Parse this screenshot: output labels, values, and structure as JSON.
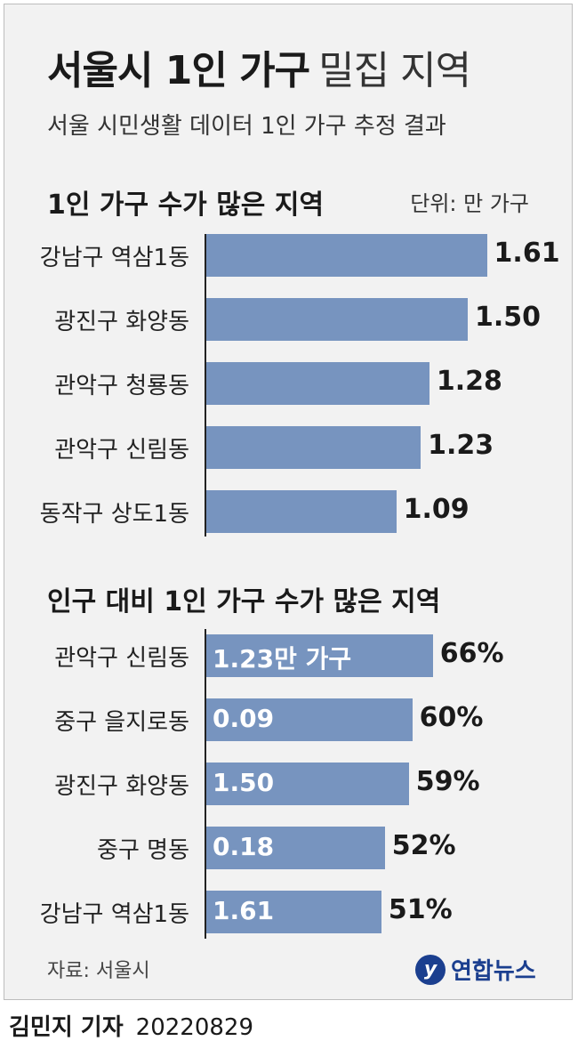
{
  "title": "서울시 1인 가구",
  "title_suffix": "밀집 지역",
  "subtitle": "서울 시민생활 데이터 1인 가구 추정 결과",
  "unit": "단위: 만 가구",
  "source": "자료: 서울시",
  "logo_text": "연합뉴스",
  "byline_name": "김민지 기자",
  "byline_date": "20220829",
  "colors": {
    "bar": "#7794bf",
    "background": "#f2f2f2",
    "logo": "#1b3f8f"
  },
  "chart_data": [
    {
      "type": "bar",
      "orientation": "horizontal",
      "title": "1인 가구 수가 많은 지역",
      "categories": [
        "강남구 역삼1동",
        "광진구 화양동",
        "관악구 청룡동",
        "관악구 신림동",
        "동작구 상도1동"
      ],
      "values": [
        1.61,
        1.5,
        1.28,
        1.23,
        1.09
      ],
      "value_labels": [
        "1.61",
        "1.50",
        "1.28",
        "1.23",
        "1.09"
      ]
    },
    {
      "type": "bar",
      "orientation": "horizontal",
      "title": "인구 대비 1인 가구 수가 많은 지역",
      "categories": [
        "관악구 신림동",
        "중구 을지로동",
        "광진구 화양동",
        "중구 명동",
        "강남구 역삼1동"
      ],
      "values": [
        66,
        60,
        59,
        52,
        51
      ],
      "value_labels": [
        "66%",
        "60%",
        "59%",
        "52%",
        "51%"
      ],
      "inner_labels": [
        "1.23만 가구",
        "0.09",
        "1.50",
        "0.18",
        "1.61"
      ]
    }
  ]
}
